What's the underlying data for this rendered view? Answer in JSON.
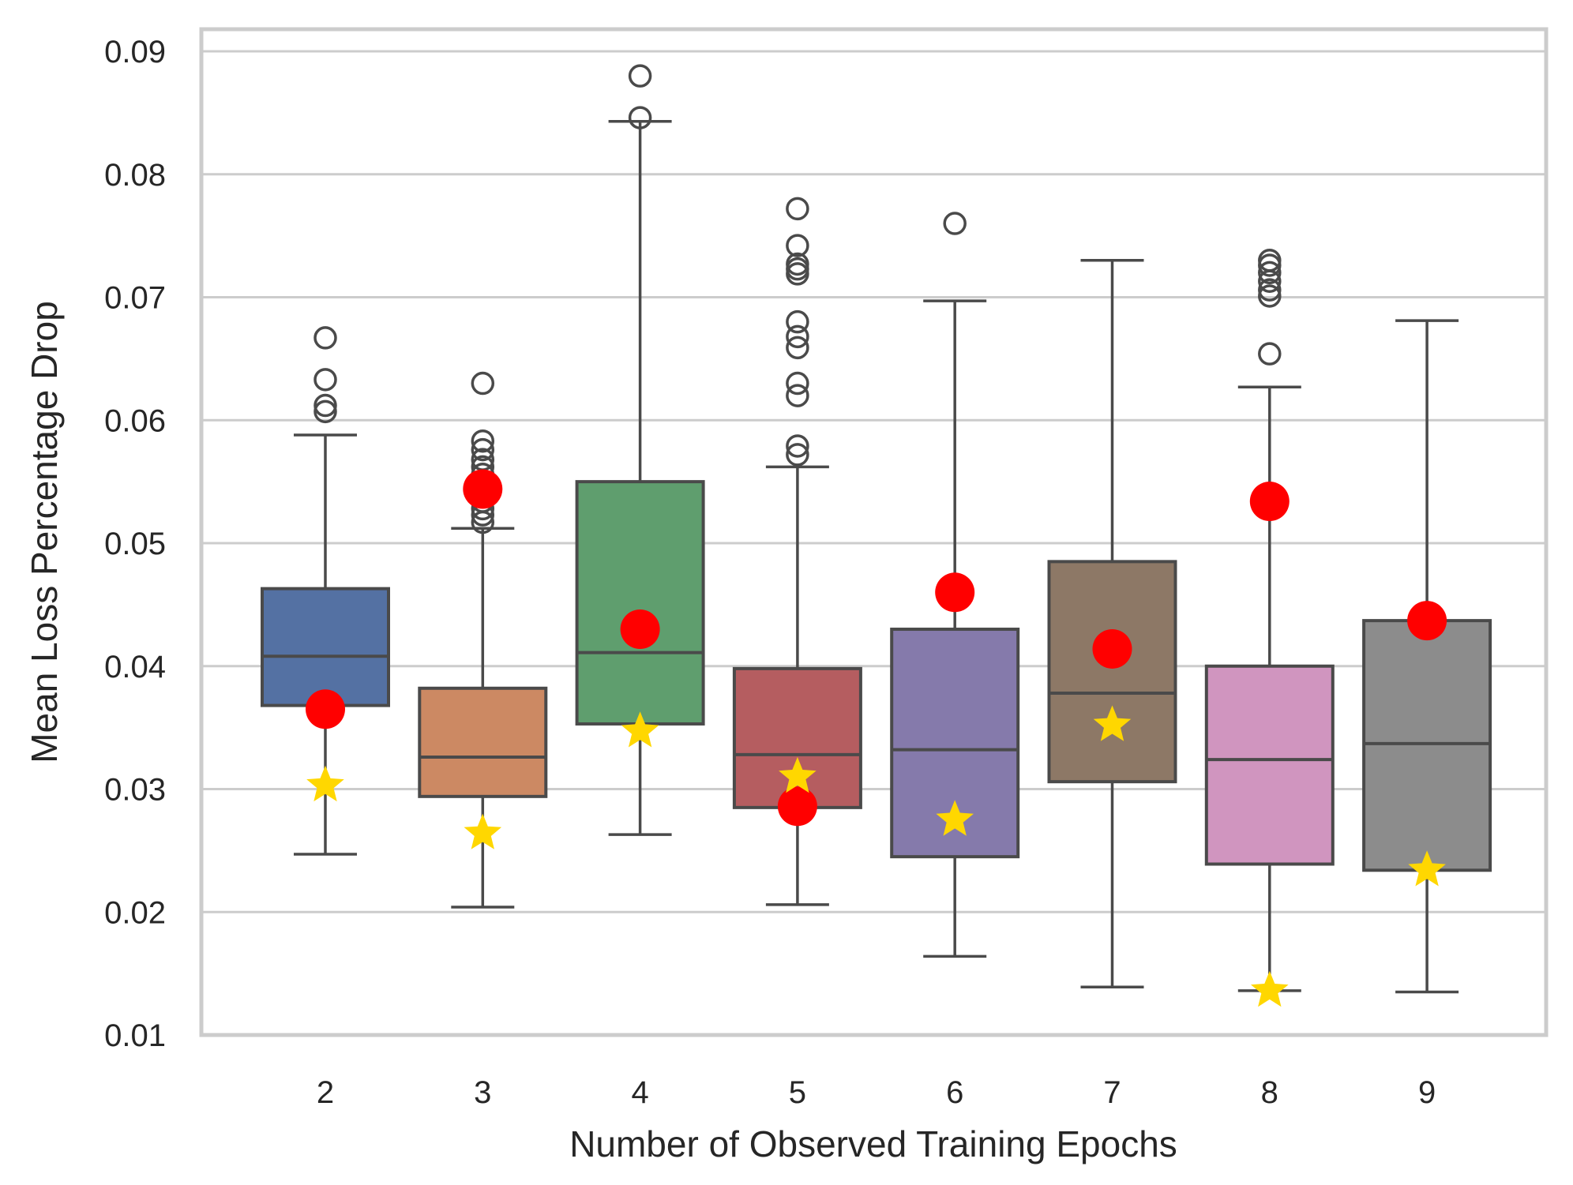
{
  "chart_data": {
    "type": "box",
    "title": "",
    "xlabel": "Number of Observed Training Epochs",
    "ylabel": "Mean Loss Percentage Drop",
    "ylim": [
      0.01,
      0.092
    ],
    "yticks": [
      0.01,
      0.02,
      0.03,
      0.04,
      0.05,
      0.06,
      0.07,
      0.08,
      0.09
    ],
    "ytick_labels": [
      "0.01",
      "0.02",
      "0.03",
      "0.04",
      "0.05",
      "0.06",
      "0.07",
      "0.08",
      "0.09"
    ],
    "categories": [
      "2",
      "3",
      "4",
      "5",
      "6",
      "7",
      "8",
      "9"
    ],
    "grid": "horizontal",
    "colors": {
      "grid": "#cccccc",
      "frame": "#cccccc",
      "box_edge": "#4a4a4a",
      "red_marker": "#ff0000",
      "star_marker": "#ffd700"
    },
    "boxes": [
      {
        "label": "2",
        "color": "#5471a3",
        "whisker_low": 0.0247,
        "q1": 0.0368,
        "median": 0.0408,
        "q3": 0.0463,
        "whisker_high": 0.0588,
        "outliers": [
          0.0607,
          0.0612,
          0.0633,
          0.0667
        ],
        "red_marker": 0.0365,
        "star_marker": 0.0303
      },
      {
        "label": "3",
        "color": "#cc8963",
        "whisker_low": 0.0204,
        "q1": 0.0294,
        "median": 0.0326,
        "q3": 0.0382,
        "whisker_high": 0.0512,
        "outliers": [
          0.0517,
          0.0523,
          0.0528,
          0.0534,
          0.0541,
          0.0549,
          0.0556,
          0.0562,
          0.0568,
          0.0576,
          0.0583,
          0.063
        ],
        "red_marker": 0.0544,
        "star_marker": 0.0264
      },
      {
        "label": "4",
        "color": "#5f9e6e",
        "whisker_low": 0.0263,
        "q1": 0.0353,
        "median": 0.0411,
        "q3": 0.055,
        "whisker_high": 0.0843,
        "outliers": [
          0.0846,
          0.088
        ],
        "red_marker": 0.043,
        "star_marker": 0.0347
      },
      {
        "label": "5",
        "color": "#b55d60",
        "whisker_low": 0.0206,
        "q1": 0.0285,
        "median": 0.0328,
        "q3": 0.0398,
        "whisker_high": 0.0562,
        "outliers": [
          0.0572,
          0.0579,
          0.062,
          0.063,
          0.0659,
          0.0668,
          0.068,
          0.0719,
          0.0723,
          0.0727,
          0.0742,
          0.0772
        ],
        "red_marker": 0.0286,
        "star_marker": 0.031
      },
      {
        "label": "6",
        "color": "#857aab",
        "whisker_low": 0.0164,
        "q1": 0.0245,
        "median": 0.0332,
        "q3": 0.043,
        "whisker_high": 0.0697,
        "outliers": [
          0.076
        ],
        "red_marker": 0.046,
        "star_marker": 0.0275
      },
      {
        "label": "7",
        "color": "#8d7866",
        "whisker_low": 0.0139,
        "q1": 0.0306,
        "median": 0.0378,
        "q3": 0.0485,
        "whisker_high": 0.073,
        "outliers": [],
        "red_marker": 0.0414,
        "star_marker": 0.0352
      },
      {
        "label": "8",
        "color": "#d095bf",
        "whisker_low": 0.0136,
        "q1": 0.0239,
        "median": 0.0324,
        "q3": 0.04,
        "whisker_high": 0.0627,
        "outliers": [
          0.0654,
          0.0701,
          0.0706,
          0.0713,
          0.072,
          0.0726,
          0.073
        ],
        "red_marker": 0.0534,
        "star_marker": 0.0136
      },
      {
        "label": "9",
        "color": "#8c8c8c",
        "whisker_low": 0.0135,
        "q1": 0.0234,
        "median": 0.0337,
        "q3": 0.0437,
        "whisker_high": 0.0681,
        "outliers": [],
        "red_marker": 0.0437,
        "star_marker": 0.0234
      }
    ]
  }
}
